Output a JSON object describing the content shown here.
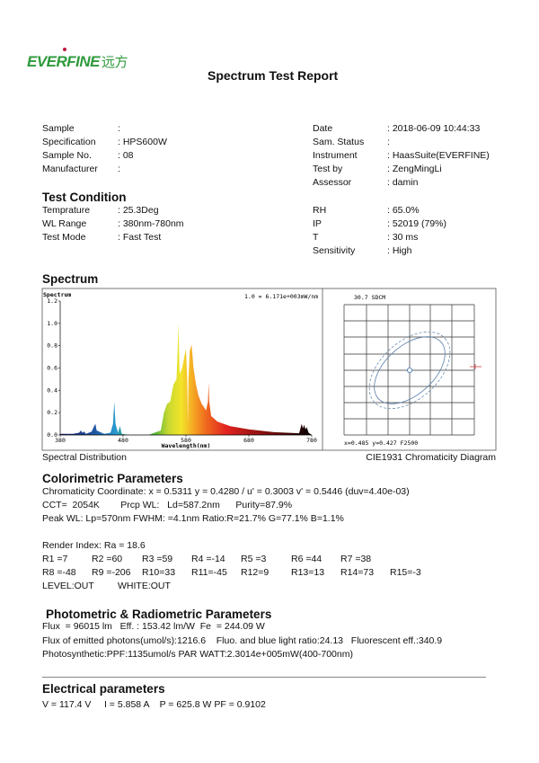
{
  "logo": {
    "text": "EVERFINE",
    "cn": "远方"
  },
  "title": "Spectrum Test Report",
  "info_left": [
    {
      "label": "Sample",
      "value": ":"
    },
    {
      "label": "Specification",
      "value": ": HPS600W"
    },
    {
      "label": "Sample No.",
      "value": ": 08"
    },
    {
      "label": "Manufacturer",
      "value": ":"
    }
  ],
  "info_right": [
    {
      "label": "Date",
      "value": ": 2018-06-09 10:44:33"
    },
    {
      "label": "Sam. Status",
      "value": ":"
    },
    {
      "label": "Instrument",
      "value": ": HaasSuite(EVERFINE)"
    },
    {
      "label": "Test by",
      "value": ": ZengMingLi"
    },
    {
      "label": "Assessor",
      "value": ": damin"
    }
  ],
  "test_condition": {
    "heading": "Test Condition",
    "left": [
      {
        "label": "Temprature",
        "value": ": 25.3Deg"
      },
      {
        "label": "WL Range",
        "value": ": 380nm-780nm"
      },
      {
        "label": "Test Mode",
        "value": ": Fast Test"
      }
    ],
    "right": [
      {
        "label": "RH",
        "value": ": 65.0%"
      },
      {
        "label": "IP",
        "value": ": 52019 (79%)"
      },
      {
        "label": "T",
        "value": ": 30 ms"
      },
      {
        "label": "Sensitivity",
        "value": ": High"
      }
    ]
  },
  "spectrum_heading": "Spectrum",
  "chart_data": [
    {
      "type": "area",
      "title": "Spectrum",
      "annotation": "1.0 = 6.171e+003mW/nm",
      "xlabel": "Wavelength(nm)",
      "xlim": [
        380,
        780
      ],
      "ylim": [
        0,
        1.2
      ],
      "xticks": [
        "380",
        "480",
        "580",
        "680",
        "780"
      ],
      "yticks": [
        "0.0",
        "0.2",
        "0.4",
        "0.6",
        "0.8",
        "1.0",
        "1.2"
      ],
      "x": [
        380,
        400,
        410,
        413,
        415,
        418,
        421,
        430,
        434,
        436,
        438,
        442,
        450,
        460,
        464,
        466,
        468,
        472,
        475,
        478,
        490,
        520,
        540,
        545,
        550,
        555,
        560,
        565,
        567,
        568,
        569,
        570,
        574,
        578,
        580,
        582,
        583,
        584,
        586,
        589,
        592,
        596,
        600,
        605,
        612,
        615,
        616,
        617,
        620,
        630,
        650,
        680,
        720,
        760,
        764,
        766,
        768,
        770,
        772,
        775,
        780
      ],
      "y": [
        0.01,
        0.01,
        0.02,
        0.04,
        0.02,
        0.03,
        0.01,
        0.03,
        0.08,
        0.1,
        0.04,
        0.03,
        0.01,
        0.02,
        0.1,
        0.3,
        0.1,
        0.02,
        0.08,
        0.01,
        0.0,
        0.0,
        0.04,
        0.2,
        0.28,
        0.3,
        0.45,
        0.5,
        0.8,
        1.0,
        0.75,
        0.55,
        0.6,
        0.72,
        0.77,
        0.5,
        0.1,
        0.5,
        0.75,
        0.81,
        0.6,
        0.45,
        0.35,
        0.28,
        0.22,
        0.3,
        0.47,
        0.3,
        0.17,
        0.12,
        0.08,
        0.05,
        0.025,
        0.015,
        0.1,
        0.06,
        0.09,
        0.05,
        0.07,
        0.02,
        0.0
      ],
      "caption": "Spectral Distribution"
    },
    {
      "type": "scatter",
      "title": "30.7 SDCM",
      "readout": "x=0.485 y=0.427 F2500",
      "caption": "CIE1931 Chromaticity Diagram"
    }
  ],
  "colorimetric": {
    "heading": "Colorimetric Parameters",
    "lines": [
      "Chromaticity Coordinate: x = 0.5311 y = 0.4280 / u' = 0.3003 v' = 0.5446 (duv=4.40e-03)",
      "CCT=  2054K        Prcp WL:   Ld=587.2nm      Purity=87.9%",
      "Peak WL:  Lp=570nm  FWHM:   =4.1nm  Ratio:R=21.7% G=77.1% B=1.1%"
    ],
    "render_index": "Render Index: Ra = 18.6",
    "r_values": [
      "R1 =7",
      "R2 =60",
      "R3 =59",
      "R4 =-14",
      "R5 =3",
      "R6 =44",
      "R7 =38",
      "R8 =-48",
      "R9 =-206",
      "R10=33",
      "R11=-45",
      "R12=9",
      "R13=13",
      "R14=73",
      "R15=-3"
    ],
    "level": "LEVEL:OUT",
    "white": "WHITE:OUT"
  },
  "photometric": {
    "heading": "Photometric & Radiometric Parameters",
    "lines": [
      "Flux  = 96015 lm   Eff. : 153.42 lm/W  Fe  = 244.09 W",
      "Flux of emitted photons(umol/s):1216.6    Fluo. and blue light ratio:24.13   Fluorescent eff.:340.9",
      "Photosynthetic:PPF:1135umol/s PAR WATT:2.3014e+005mW(400-700nm)"
    ]
  },
  "electrical": {
    "heading": "Electrical parameters",
    "line": "V = 117.4 V     I = 5.858 A    P = 625.8 W PF = 0.9102"
  }
}
